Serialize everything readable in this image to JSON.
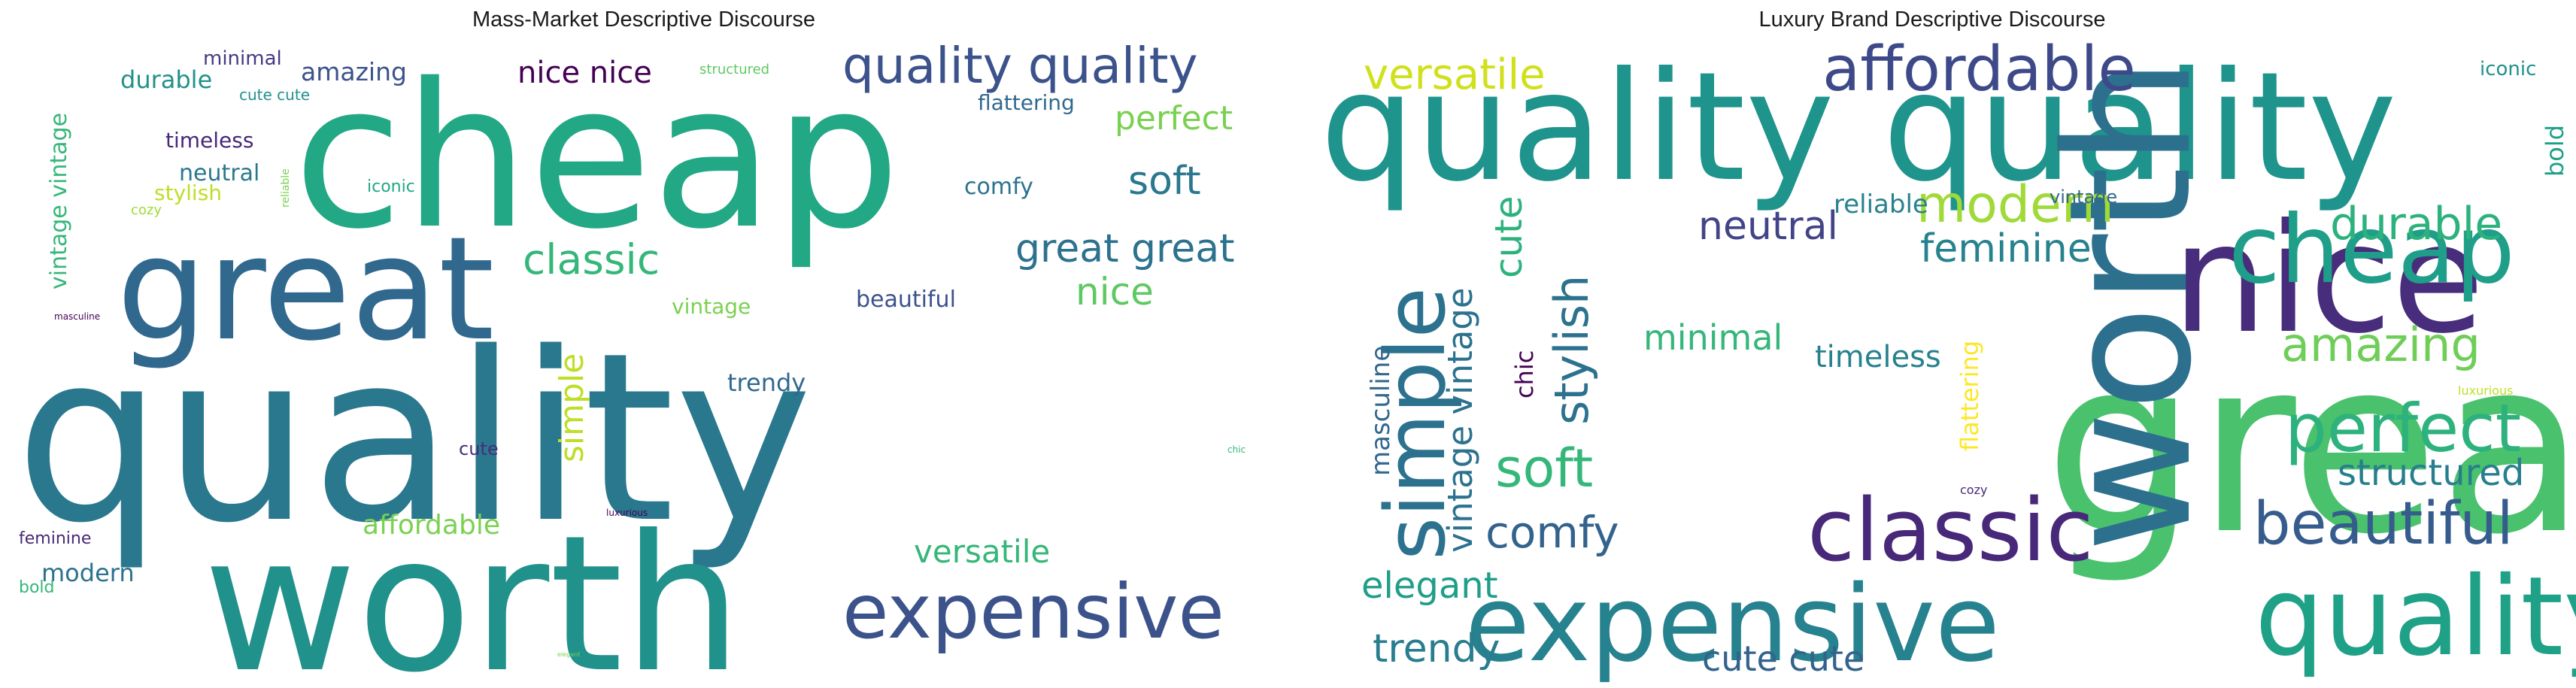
{
  "chart_data": [
    {
      "type": "wordcloud",
      "title": "Mass-Market Descriptive Discourse",
      "words": [
        {
          "text": "quality",
          "color": "#2a788e"
        },
        {
          "text": "worth",
          "color": "#21918c"
        },
        {
          "text": "cheap",
          "color": "#22a884"
        },
        {
          "text": "great",
          "color": "#31688e"
        },
        {
          "text": "expensive",
          "color": "#3b528b"
        },
        {
          "text": "quality quality",
          "color": "#3b528b"
        },
        {
          "text": "classic",
          "color": "#35b779"
        },
        {
          "text": "great great",
          "color": "#2c728e"
        },
        {
          "text": "soft",
          "color": "#2a788e"
        },
        {
          "text": "nice",
          "color": "#5ec962"
        },
        {
          "text": "perfect",
          "color": "#7ad151"
        },
        {
          "text": "simple",
          "color": "#bddf26"
        },
        {
          "text": "versatile",
          "color": "#35b779"
        },
        {
          "text": "nice nice",
          "color": "#440154"
        },
        {
          "text": "trendy",
          "color": "#31688e"
        },
        {
          "text": "beautiful",
          "color": "#3b528b"
        },
        {
          "text": "affordable",
          "color": "#7ad151"
        },
        {
          "text": "amazing",
          "color": "#3b528b"
        },
        {
          "text": "modern",
          "color": "#2c728e"
        },
        {
          "text": "durable",
          "color": "#21918c"
        },
        {
          "text": "vintage vintage",
          "color": "#35b779"
        },
        {
          "text": "vintage",
          "color": "#7ad151"
        },
        {
          "text": "flattering",
          "color": "#31688e"
        },
        {
          "text": "comfy",
          "color": "#2c728e"
        },
        {
          "text": "neutral",
          "color": "#2a788e"
        },
        {
          "text": "stylish",
          "color": "#bddf26"
        },
        {
          "text": "timeless",
          "color": "#482878"
        },
        {
          "text": "minimal",
          "color": "#443a83"
        },
        {
          "text": "cute",
          "color": "#472d7b"
        },
        {
          "text": "feminine",
          "color": "#482878"
        },
        {
          "text": "iconic",
          "color": "#22a884"
        },
        {
          "text": "cute cute",
          "color": "#21918c"
        },
        {
          "text": "bold",
          "color": "#35b779"
        },
        {
          "text": "structured",
          "color": "#5ec962"
        },
        {
          "text": "cozy",
          "color": "#a0da39"
        },
        {
          "text": "reliable",
          "color": "#7ad151"
        },
        {
          "text": "masculine",
          "color": "#440154"
        },
        {
          "text": "chic",
          "color": "#35b779"
        },
        {
          "text": "luxurious",
          "color": "#440154"
        },
        {
          "text": "elegant",
          "color": "#7ad151"
        }
      ]
    },
    {
      "type": "wordcloud",
      "title": "Luxury Brand Descriptive Discourse",
      "words": [
        {
          "text": "great",
          "color": "#4ac16d"
        },
        {
          "text": "quality quality",
          "color": "#1f948c"
        },
        {
          "text": "worth",
          "color": "#2d708e"
        },
        {
          "text": "nice",
          "color": "#472d7b"
        },
        {
          "text": "expensive",
          "color": "#26828e"
        },
        {
          "text": "quality",
          "color": "#1fa187"
        },
        {
          "text": "classic",
          "color": "#482878"
        },
        {
          "text": "cheap",
          "color": "#1f9e89"
        },
        {
          "text": "simple",
          "color": "#2c728e"
        },
        {
          "text": "affordable",
          "color": "#3e4989"
        },
        {
          "text": "perfect",
          "color": "#2db27d"
        },
        {
          "text": "beautiful",
          "color": "#365c8d"
        },
        {
          "text": "modern",
          "color": "#a0da39"
        },
        {
          "text": "stylish",
          "color": "#2c728e"
        },
        {
          "text": "soft",
          "color": "#35b779"
        },
        {
          "text": "amazing",
          "color": "#6ece58"
        },
        {
          "text": "durable",
          "color": "#2db27d"
        },
        {
          "text": "versatile",
          "color": "#d0e11c"
        },
        {
          "text": "feminine",
          "color": "#26828e"
        },
        {
          "text": "comfy",
          "color": "#33638d"
        },
        {
          "text": "trendy",
          "color": "#287d8e"
        },
        {
          "text": "structured",
          "color": "#277f8e"
        },
        {
          "text": "neutral",
          "color": "#414487"
        },
        {
          "text": "cute",
          "color": "#2db27d"
        },
        {
          "text": "vintage vintage",
          "color": "#2c728e"
        },
        {
          "text": "elegant",
          "color": "#1f9e89"
        },
        {
          "text": "minimal",
          "color": "#35b779"
        },
        {
          "text": "cute cute",
          "color": "#33638d"
        },
        {
          "text": "timeless",
          "color": "#26828e"
        },
        {
          "text": "masculine",
          "color": "#31688e"
        },
        {
          "text": "flattering",
          "color": "#fde725"
        },
        {
          "text": "reliable",
          "color": "#26828e"
        },
        {
          "text": "chic",
          "color": "#440154"
        },
        {
          "text": "bold",
          "color": "#1fa187"
        },
        {
          "text": "iconic",
          "color": "#21918c"
        },
        {
          "text": "vintage",
          "color": "#31688e"
        },
        {
          "text": "luxurious",
          "color": "#bddf26"
        },
        {
          "text": "cozy",
          "color": "#482878"
        }
      ]
    }
  ]
}
